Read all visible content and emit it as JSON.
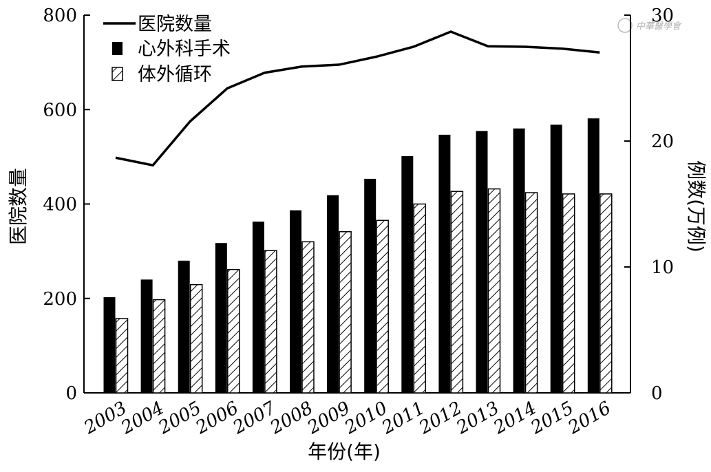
{
  "chart_data": {
    "type": "bar",
    "categories": [
      "2003",
      "2004",
      "2005",
      "2006",
      "2007",
      "2008",
      "2009",
      "2010",
      "2011",
      "2012",
      "2013",
      "2014",
      "2015",
      "2016"
    ],
    "xlabel": "年份(年)",
    "ylabel_left": "医院数量",
    "ylabel_right": "例数(万例)",
    "ylim_left": [
      0,
      800
    ],
    "ylim_right": [
      0,
      30
    ],
    "yticks_left": [
      "0",
      "200",
      "400",
      "600",
      "800"
    ],
    "yticks_right": [
      "0",
      "10",
      "20",
      "30"
    ],
    "grid": false,
    "legend_position": "top-left",
    "series": [
      {
        "name": "医院数量",
        "kind": "line",
        "axis": "left",
        "color": "#000000",
        "values": [
          498,
          482,
          575,
          645,
          678,
          691,
          695,
          712,
          733,
          765,
          734,
          733,
          729,
          721
        ]
      },
      {
        "name": "心外科手术",
        "kind": "bar",
        "axis": "right",
        "fill": "solid",
        "color": "#000000",
        "values": [
          7.6,
          9.0,
          10.5,
          11.9,
          13.6,
          14.5,
          15.7,
          17.0,
          18.8,
          20.5,
          20.8,
          21.0,
          21.3,
          21.8
        ]
      },
      {
        "name": "体外循环",
        "kind": "bar",
        "axis": "right",
        "fill": "hatched",
        "color": "#000000",
        "values": [
          5.9,
          7.4,
          8.6,
          9.8,
          11.3,
          12.0,
          12.8,
          13.7,
          15.0,
          16.0,
          16.2,
          15.9,
          15.8,
          15.8
        ]
      }
    ]
  },
  "watermark": "中華醫學會"
}
